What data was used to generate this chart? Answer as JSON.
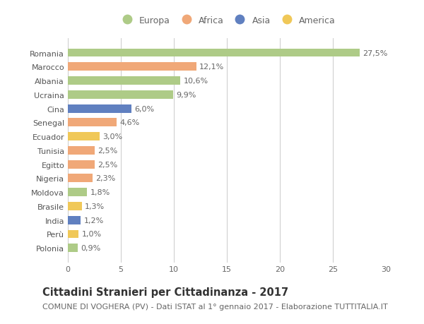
{
  "countries": [
    "Romania",
    "Marocco",
    "Albania",
    "Ucraina",
    "Cina",
    "Senegal",
    "Ecuador",
    "Tunisia",
    "Egitto",
    "Nigeria",
    "Moldova",
    "Brasile",
    "India",
    "Perù",
    "Polonia"
  ],
  "values": [
    27.5,
    12.1,
    10.6,
    9.9,
    6.0,
    4.6,
    3.0,
    2.5,
    2.5,
    2.3,
    1.8,
    1.3,
    1.2,
    1.0,
    0.9
  ],
  "labels": [
    "27,5%",
    "12,1%",
    "10,6%",
    "9,9%",
    "6,0%",
    "4,6%",
    "3,0%",
    "2,5%",
    "2,5%",
    "2,3%",
    "1,8%",
    "1,3%",
    "1,2%",
    "1,0%",
    "0,9%"
  ],
  "continents": [
    "Europa",
    "Africa",
    "Europa",
    "Europa",
    "Asia",
    "Africa",
    "America",
    "Africa",
    "Africa",
    "Africa",
    "Europa",
    "America",
    "Asia",
    "America",
    "Europa"
  ],
  "continent_colors": {
    "Europa": "#aecb87",
    "Africa": "#f0a878",
    "Asia": "#6080c0",
    "America": "#f0c858"
  },
  "legend_order": [
    "Europa",
    "Africa",
    "Asia",
    "America"
  ],
  "title": "Cittadini Stranieri per Cittadinanza - 2017",
  "subtitle": "COMUNE DI VOGHERA (PV) - Dati ISTAT al 1° gennaio 2017 - Elaborazione TUTTITALIA.IT",
  "xlim": [
    0,
    30
  ],
  "xticks": [
    0,
    5,
    10,
    15,
    20,
    25,
    30
  ],
  "background_color": "#ffffff",
  "grid_color": "#cccccc",
  "bar_height": 0.6,
  "title_fontsize": 10.5,
  "subtitle_fontsize": 8,
  "label_fontsize": 8,
  "tick_fontsize": 8,
  "legend_fontsize": 9
}
